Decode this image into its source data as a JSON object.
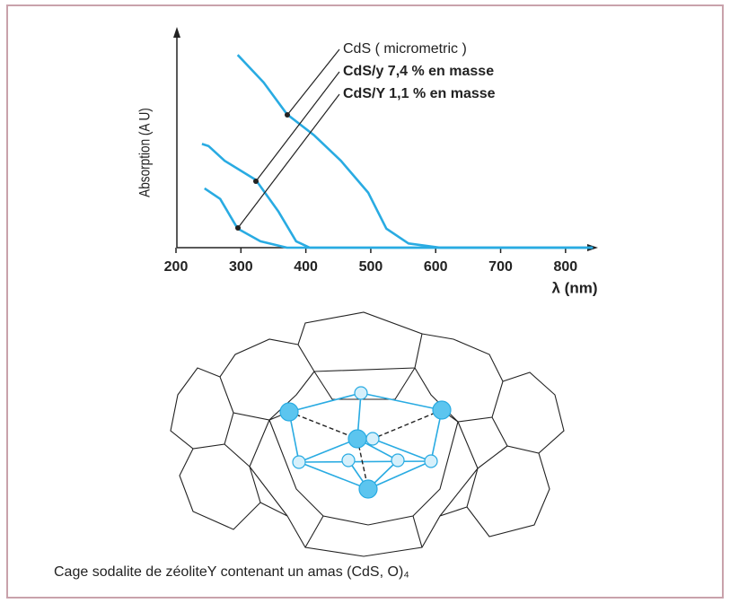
{
  "chart_data": {
    "type": "line",
    "y_label": "Absorption (A U)",
    "x_label": "λ (nm)",
    "xlim": [
      200,
      850
    ],
    "xticks": [
      200,
      300,
      400,
      500,
      600,
      700,
      800
    ],
    "ylim": [
      0,
      1
    ],
    "series": [
      {
        "name": "CdS ( micrometric )",
        "color": "#29abe2",
        "x": [
          295,
          335,
          371,
          413,
          454,
          496,
          524,
          558,
          607,
          842
        ],
        "values": [
          0.91,
          0.78,
          0.63,
          0.53,
          0.41,
          0.26,
          0.09,
          0.02,
          0,
          0
        ]
      },
      {
        "name": "CdS/y 7,4 % en masse",
        "color": "#29abe2",
        "x": [
          240,
          250,
          275,
          323,
          358,
          385,
          406,
          842
        ],
        "values": [
          0.49,
          0.48,
          0.41,
          0.32,
          0.17,
          0.03,
          0,
          0
        ]
      },
      {
        "name": "CdS/Y 1,1 % en masse",
        "color": "#29abe2",
        "x": [
          244,
          268,
          295,
          330,
          371,
          842
        ],
        "values": [
          0.28,
          0.23,
          0.09,
          0.03,
          0,
          0
        ]
      }
    ]
  },
  "caption": "Cage sodalite de zéoliteY contenant un amas (CdS, O)₄"
}
